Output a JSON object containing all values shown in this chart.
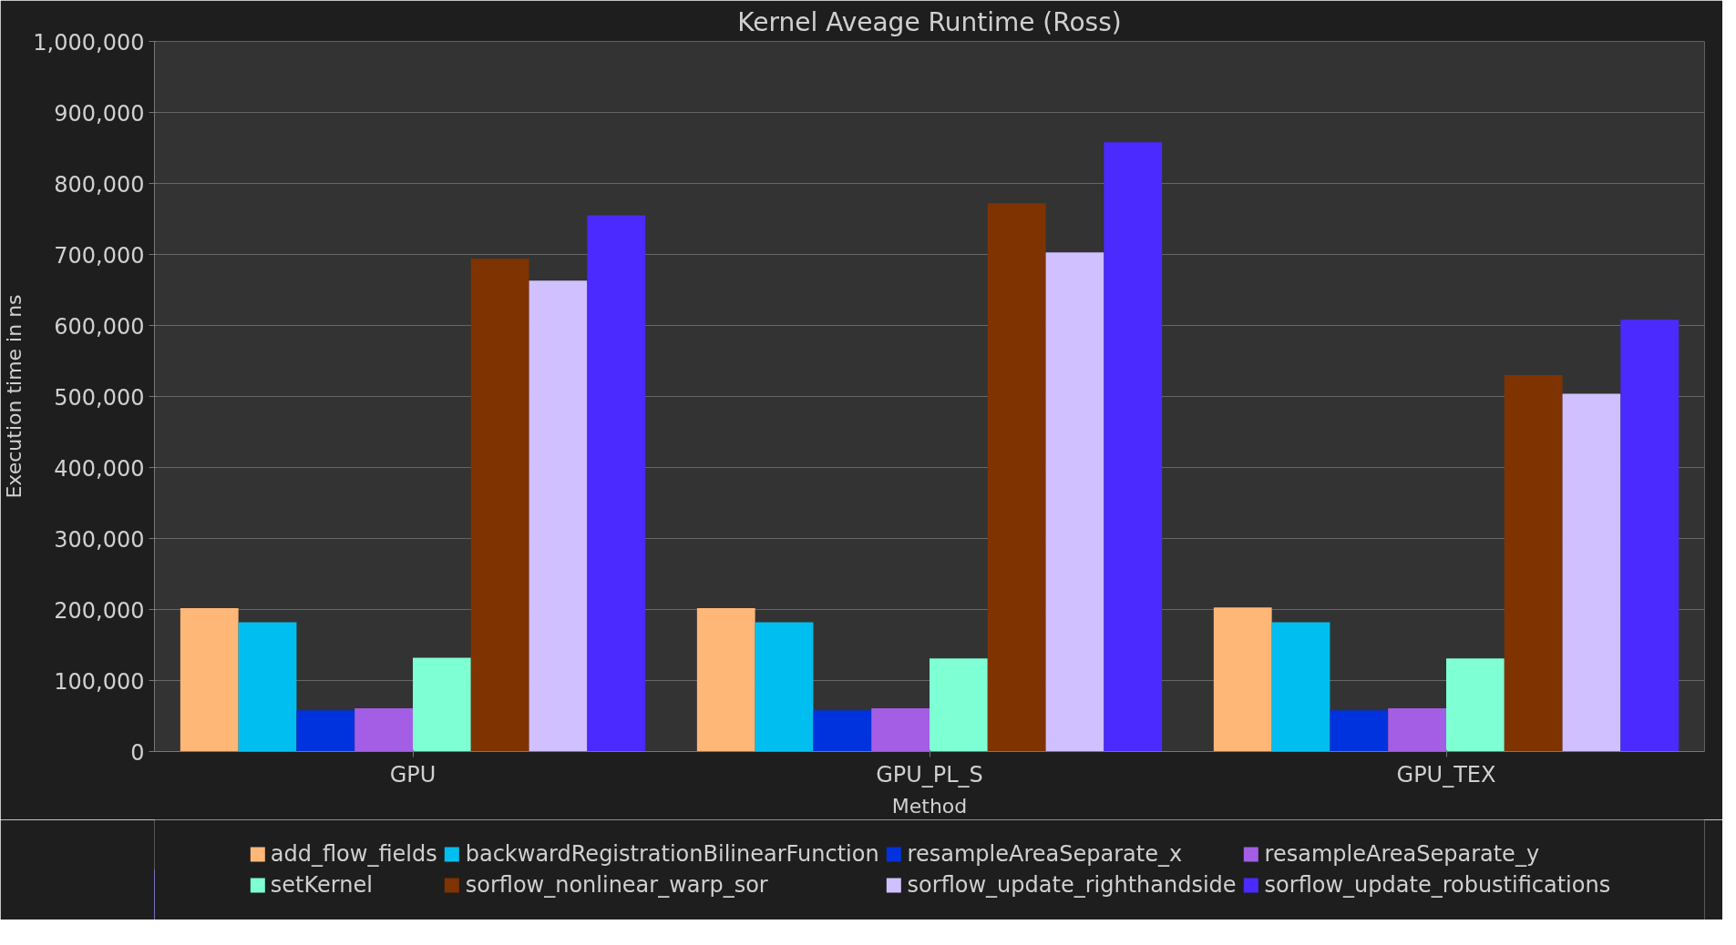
{
  "chart_data": {
    "type": "bar",
    "title": "Kernel Aveage Runtime (Ross)",
    "xlabel": "Method",
    "ylabel": "Execution time in ns",
    "categories": [
      "GPU",
      "GPU_PL_S",
      "GPU_TEX"
    ],
    "series": [
      {
        "name": "add_flow_fields",
        "color": "#ffb778",
        "values": [
          202000,
          202000,
          203000
        ]
      },
      {
        "name": "backwardRegistrationBilinearFunction",
        "color": "#00bff0",
        "values": [
          182000,
          182000,
          182000
        ]
      },
      {
        "name": "resampleAreaSeparate_x",
        "color": "#0033dd",
        "values": [
          58000,
          58000,
          58000
        ]
      },
      {
        "name": "resampleAreaSeparate_y",
        "color": "#a45ee5",
        "values": [
          61000,
          61000,
          61000
        ]
      },
      {
        "name": "setKernel",
        "color": "#7fffd4",
        "values": [
          132000,
          131000,
          131000
        ]
      },
      {
        "name": "sorflow_nonlinear_warp_sor",
        "color": "#7f3300",
        "values": [
          694000,
          772000,
          530000
        ]
      },
      {
        "name": "sorflow_update_righthandside",
        "color": "#d0c0ff",
        "values": [
          663000,
          703000,
          504000
        ]
      },
      {
        "name": "sorflow_update_robustifications",
        "color": "#4a2aff",
        "values": [
          755000,
          858000,
          608000
        ]
      }
    ],
    "ylim": [
      0,
      1000000
    ],
    "yticks": [
      {
        "value": 0,
        "label": "0"
      },
      {
        "value": 100000,
        "label": "100,000"
      },
      {
        "value": 200000,
        "label": "200,000"
      },
      {
        "value": 300000,
        "label": "300,000"
      },
      {
        "value": 400000,
        "label": "400,000"
      },
      {
        "value": 500000,
        "label": "500,000"
      },
      {
        "value": 600000,
        "label": "600,000"
      },
      {
        "value": 700000,
        "label": "700,000"
      },
      {
        "value": 800000,
        "label": "800,000"
      },
      {
        "value": 900000,
        "label": "900,000"
      },
      {
        "value": 1000000,
        "label": "1,000,000"
      }
    ],
    "grid": "y",
    "legend": "bottom"
  }
}
